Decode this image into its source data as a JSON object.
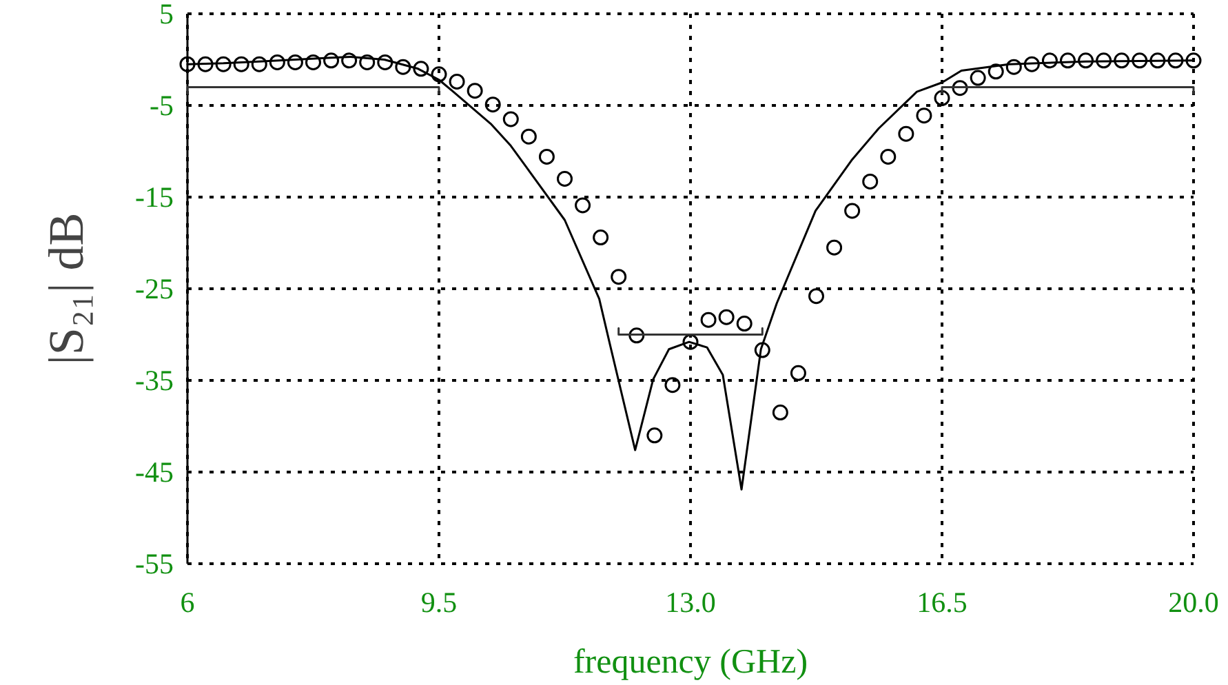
{
  "chart_data": {
    "type": "line",
    "xlabel": "frequency (GHz)",
    "ylabel": "|S₂₁| dB",
    "xlim": [
      6,
      20
    ],
    "xticks": [
      6,
      9.5,
      {
        "value": 13,
        "label": "13.0"
      },
      16.5,
      {
        "value": 20,
        "label": "20.0"
      }
    ],
    "ylim": [
      -55,
      5
    ],
    "yticks": [
      5,
      -5,
      -15,
      -25,
      -35,
      -45,
      -55
    ],
    "grid": true,
    "series": [
      {
        "color": "#000000",
        "line_style": "solid",
        "marker": "none",
        "x": [
          6,
          6.5,
          7,
          7.5,
          8,
          8.27,
          8.74,
          9.21,
          9.5,
          9.7,
          10.22,
          10.5,
          11.25,
          11.73,
          11.88,
          12.23,
          12.48,
          12.7,
          12.98,
          13.23,
          13.45,
          13.71,
          13.98,
          14.2,
          14.74,
          15.24,
          15.62,
          16.15,
          16.5,
          16.77,
          17.43,
          18.5,
          20
        ],
        "values": [
          -0.5,
          -0.4,
          -0.2,
          0,
          0.2,
          0.3,
          0,
          -1,
          -2.2,
          -3.5,
          -7,
          -9.4,
          -17.5,
          -26.1,
          -31.1,
          -42.6,
          -34.9,
          -31.6,
          -30.8,
          -31.4,
          -34.4,
          -46.9,
          -31.6,
          -26.6,
          -16.5,
          -11,
          -7.5,
          -3.5,
          -2.5,
          -1.2,
          -0.5,
          -0.2,
          -0.1
        ]
      },
      {
        "type": "scatter",
        "color": "#000000",
        "marker": "circle",
        "x": [
          6,
          6.25,
          6.5,
          6.75,
          7,
          7.25,
          7.5,
          7.75,
          8,
          8.25,
          8.5,
          8.75,
          9,
          9.25,
          9.5,
          9.75,
          10,
          10.25,
          10.5,
          10.75,
          11,
          11.25,
          11.5,
          11.75,
          12,
          12.25,
          12.5,
          12.75,
          13,
          13.25,
          13.5,
          13.75,
          14,
          14.25,
          14.5,
          14.75,
          15,
          15.25,
          15.5,
          15.75,
          16,
          16.25,
          16.5,
          16.75,
          17,
          17.25,
          17.5,
          17.75,
          18,
          18.25,
          18.5,
          18.75,
          19,
          19.25,
          19.5,
          19.75,
          20
        ],
        "values": [
          -0.5,
          -0.5,
          -0.5,
          -0.5,
          -0.5,
          -0.3,
          -0.3,
          -0.3,
          -0.1,
          -0.1,
          -0.3,
          -0.3,
          -0.8,
          -1,
          -1.6,
          -2.4,
          -3.4,
          -4.9,
          -6.5,
          -8.4,
          -10.6,
          -13,
          -15.9,
          -19.4,
          -23.7,
          -30.1,
          -41,
          -35.5,
          -30.8,
          -28.4,
          -28.1,
          -28.8,
          -31.7,
          -38.5,
          -34.2,
          -25.8,
          -20.5,
          -16.5,
          -13.3,
          -10.6,
          -8.1,
          -6.1,
          -4.2,
          -3.1,
          -2,
          -1.3,
          -0.8,
          -0.5,
          -0.1,
          -0.1,
          -0.1,
          -0.1,
          -0.1,
          -0.1,
          -0.1,
          -0.1,
          -0.1
        ]
      },
      {
        "type": "line",
        "color": "#333333",
        "line_style": "solid",
        "marker": "none",
        "x": [
          6,
          6,
          9.5,
          9.5
        ],
        "values": [
          -3.7,
          -3,
          -3,
          -3.7
        ]
      },
      {
        "type": "line",
        "color": "#333333",
        "line_style": "solid",
        "marker": "none",
        "x": [
          12,
          12,
          14,
          14
        ],
        "values": [
          -29.3,
          -30,
          -30,
          -29.3
        ]
      },
      {
        "type": "line",
        "color": "#333333",
        "line_style": "solid",
        "marker": "none",
        "x": [
          16.5,
          16.5,
          20,
          20
        ],
        "values": [
          -3.7,
          -3,
          -3,
          -3.7
        ]
      }
    ]
  }
}
